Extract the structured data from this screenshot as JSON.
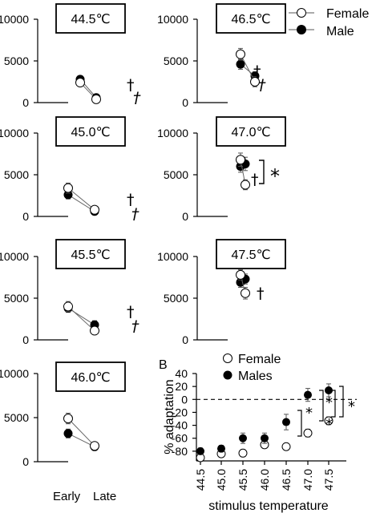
{
  "legend_top": {
    "female": "Female",
    "male": "Male"
  },
  "x_categories": [
    "Early",
    "Late"
  ],
  "symbols": {
    "dagger": "†",
    "italic_dagger": "†",
    "star": "*"
  },
  "chart_data": [
    {
      "type": "line",
      "title": "44.5℃",
      "categories": [
        "Early",
        "Late"
      ],
      "ylim": [
        0,
        10000
      ],
      "yticks": [
        "10000",
        "5000",
        "0"
      ],
      "series": [
        {
          "name": "Female",
          "values": [
            2400,
            400
          ],
          "errors": [
            250,
            150
          ]
        },
        {
          "name": "Male",
          "values": [
            2800,
            600
          ],
          "errors": [
            200,
            150
          ]
        }
      ],
      "annotations": [
        "†",
        "†"
      ]
    },
    {
      "type": "line",
      "title": "46.5℃",
      "categories": [
        "Early",
        "Late"
      ],
      "ylim": [
        0,
        10000
      ],
      "yticks": [
        "10000",
        "5000",
        "0"
      ],
      "series": [
        {
          "name": "Female",
          "values": [
            5800,
            2500
          ],
          "errors": [
            700,
            600
          ]
        },
        {
          "name": "Male",
          "values": [
            4600,
            3200
          ],
          "errors": [
            600,
            500
          ]
        }
      ],
      "annotations": [
        "†",
        "†"
      ]
    },
    {
      "type": "line",
      "title": "45.0℃",
      "categories": [
        "Early",
        "Late"
      ],
      "ylim": [
        0,
        10000
      ],
      "yticks": [
        "10000",
        "5000",
        "0"
      ],
      "series": [
        {
          "name": "Female",
          "values": [
            3400,
            800
          ],
          "errors": [
            600,
            200
          ]
        },
        {
          "name": "Male",
          "values": [
            2600,
            600
          ],
          "errors": [
            500,
            200
          ]
        }
      ],
      "annotations": [
        "†",
        "†"
      ]
    },
    {
      "type": "line",
      "title": "47.0℃",
      "categories": [
        "Early",
        "Late"
      ],
      "ylim": [
        0,
        10000
      ],
      "yticks": [
        "10000",
        "5000",
        "0"
      ],
      "series": [
        {
          "name": "Female",
          "values": [
            6800,
            3800
          ],
          "errors": [
            800,
            600
          ]
        },
        {
          "name": "Male",
          "values": [
            6000,
            6300
          ],
          "errors": [
            700,
            800
          ]
        }
      ],
      "annotations": [
        "†",
        "*"
      ]
    },
    {
      "type": "line",
      "title": "45.5℃",
      "categories": [
        "Early",
        "Late"
      ],
      "ylim": [
        0,
        10000
      ],
      "yticks": [
        "10000",
        "5000",
        "0"
      ],
      "series": [
        {
          "name": "Female",
          "values": [
            4000,
            1100
          ],
          "errors": [
            600,
            300
          ]
        },
        {
          "name": "Male",
          "values": [
            3800,
            1800
          ],
          "errors": [
            500,
            500
          ]
        }
      ],
      "annotations": [
        "†",
        "†"
      ]
    },
    {
      "type": "line",
      "title": "47.5℃",
      "categories": [
        "Early",
        "Late"
      ],
      "ylim": [
        0,
        10000
      ],
      "yticks": [
        "10000",
        "5000",
        "0"
      ],
      "series": [
        {
          "name": "Female",
          "values": [
            7800,
            5600
          ],
          "errors": [
            600,
            700
          ]
        },
        {
          "name": "Male",
          "values": [
            6900,
            7300
          ],
          "errors": [
            600,
            600
          ]
        }
      ],
      "annotations": [
        "†"
      ]
    },
    {
      "type": "line",
      "title": "46.0℃",
      "categories": [
        "Early",
        "Late"
      ],
      "ylim": [
        0,
        10000
      ],
      "yticks": [
        "10000",
        "5000",
        "0"
      ],
      "series": [
        {
          "name": "Female",
          "values": [
            4900,
            1800
          ],
          "errors": [
            600,
            400
          ]
        },
        {
          "name": "Male",
          "values": [
            3200,
            1700
          ],
          "errors": [
            500,
            400
          ]
        }
      ],
      "annotations": []
    },
    {
      "type": "scatter",
      "panel_label": "B",
      "categories": [
        "44.5",
        "45.0",
        "45.5",
        "46.0",
        "46.5",
        "47.0",
        "47.5"
      ],
      "ylim": [
        -95,
        40
      ],
      "yticks": [
        "40",
        "20",
        "0",
        "-20",
        "-40",
        "-60",
        "-80"
      ],
      "ylabel": "% adaptation",
      "xlabel": "stimulus temperature",
      "series": [
        {
          "name": "Female",
          "values": [
            -90,
            -84,
            -83,
            -70,
            -73,
            -52,
            -33
          ],
          "errors": [
            5,
            4,
            4,
            5,
            5,
            6,
            6
          ]
        },
        {
          "name": "Males",
          "values": [
            -80,
            -76,
            -60,
            -60,
            -35,
            7,
            14
          ],
          "errors": [
            5,
            5,
            8,
            8,
            12,
            10,
            10
          ]
        }
      ],
      "annotations": [
        "*",
        "*",
        "*",
        "*"
      ]
    }
  ]
}
